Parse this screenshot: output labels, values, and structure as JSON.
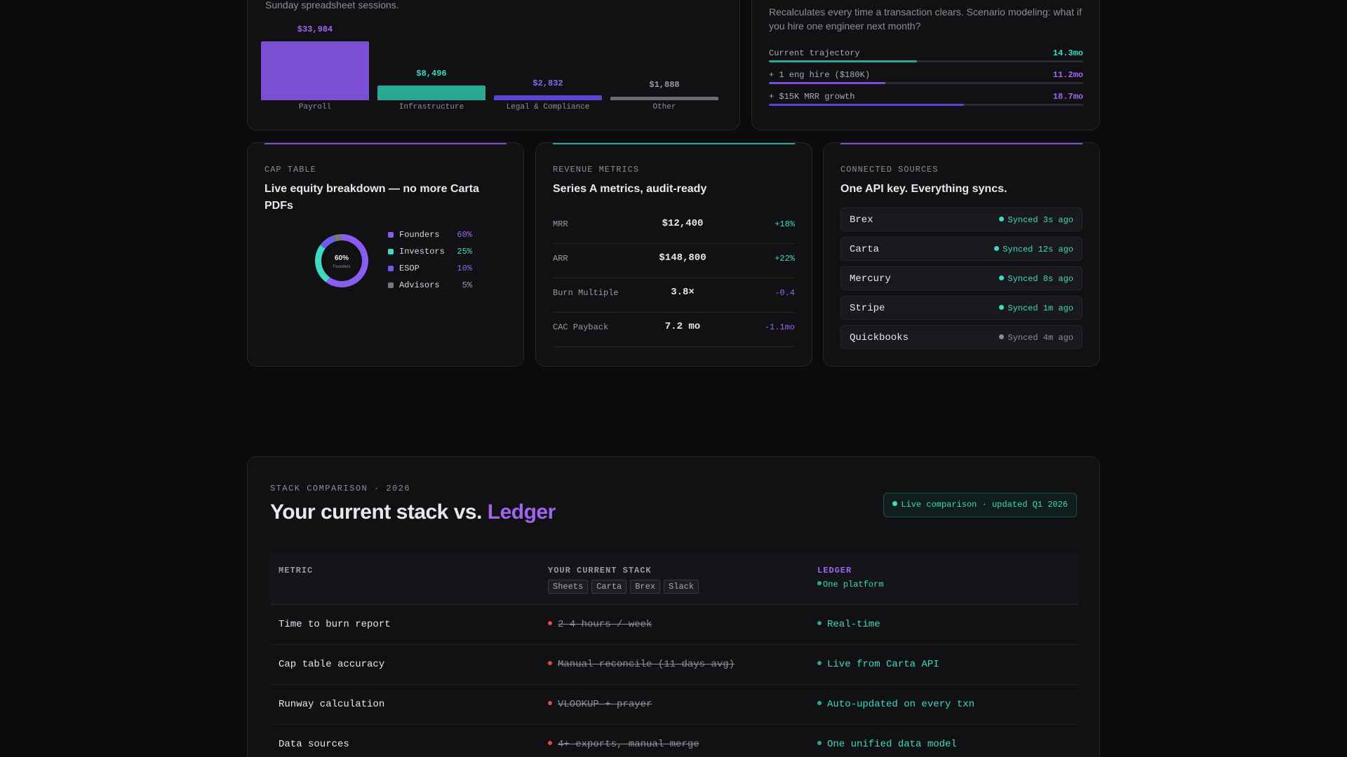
{
  "colors": {
    "purple": "#7b4fd3",
    "purple_text": "#a064f0",
    "teal": "#2aa893",
    "teal_text": "#3fd9c1",
    "indigo": "#5b45d6",
    "indigo_text": "#7a6cf5",
    "gray": "#6b6b72",
    "red": "#e04b4b"
  },
  "expense": {
    "subtitle": "Sunday spreadsheet sessions.",
    "chart_data": {
      "type": "bar",
      "categories": [
        "Payroll",
        "Infrastructure",
        "Legal & Compliance",
        "Other"
      ],
      "values": [
        33984,
        8496,
        2832,
        1888
      ],
      "value_labels": [
        "$33,984",
        "$8,496",
        "$2,832",
        "$1,888"
      ],
      "bar_colors": [
        "#7b4fd3",
        "#2aa893",
        "#5b45d6",
        "#6b6b72"
      ],
      "label_colors": [
        "#a064f0",
        "#3fd9c1",
        "#7a6cf5",
        "#9a9aa3"
      ]
    }
  },
  "runway": {
    "subtitle": "Recalculates every time a transaction clears. Scenario modeling: what if you hire one engineer next month?",
    "scenarios": [
      {
        "label": "Current trajectory",
        "value": "14.3mo",
        "fill": 0.47,
        "color": "#2aa893",
        "text_color": "#3fd9c1"
      },
      {
        "label": "+ 1 eng hire ($180K)",
        "value": "11.2mo",
        "fill": 0.37,
        "color": "#7b4fd3",
        "text_color": "#a064f0"
      },
      {
        "label": "+ $15K MRR growth",
        "value": "18.7mo",
        "fill": 0.62,
        "color": "#5b45d6",
        "text_color": "#a064f0"
      }
    ]
  },
  "cap_table": {
    "eyebrow": "CAP TABLE",
    "title": "Live equity breakdown — no more Carta PDFs",
    "center_value": "60%",
    "center_label": "Founders",
    "chart_data": {
      "type": "pie",
      "categories": [
        "Founders",
        "Investors",
        "ESOP",
        "Advisors"
      ],
      "values": [
        60,
        25,
        10,
        5
      ],
      "labels": [
        "60%",
        "25%",
        "10%",
        "5%"
      ],
      "colors": [
        "#8a5cf0",
        "#3fd9c1",
        "#6e5cf0",
        "#77777f"
      ],
      "label_colors": [
        "#a064f0",
        "#3fd9c1",
        "#7a6cf5",
        "#9a9aa3"
      ]
    }
  },
  "revenue": {
    "eyebrow": "REVENUE METRICS",
    "title": "Series A metrics, audit-ready",
    "rows": [
      {
        "name": "MRR",
        "value": "$12,400",
        "delta": "+18%",
        "color": "#3fd9c1"
      },
      {
        "name": "ARR",
        "value": "$148,800",
        "delta": "+22%",
        "color": "#3fd9c1"
      },
      {
        "name": "Burn Multiple",
        "value": "3.8×",
        "delta": "-0.4",
        "color": "#a064f0"
      },
      {
        "name": "CAC Payback",
        "value": "7.2 mo",
        "delta": "-1.1mo",
        "color": "#a064f0"
      }
    ]
  },
  "sources": {
    "eyebrow": "CONNECTED SOURCES",
    "title": "One API key. Everything syncs.",
    "items": [
      {
        "name": "Brex",
        "status": "Synced 3s ago",
        "color": "#3fd9c1"
      },
      {
        "name": "Carta",
        "status": "Synced 12s ago",
        "color": "#3fd9c1"
      },
      {
        "name": "Mercury",
        "status": "Synced 8s ago",
        "color": "#3fd9c1"
      },
      {
        "name": "Stripe",
        "status": "Synced 1m ago",
        "color": "#3fd9c1"
      },
      {
        "name": "Quickbooks",
        "status": "Synced 4m ago",
        "color": "#8d8d96"
      }
    ]
  },
  "compare": {
    "eyebrow": "STACK COMPARISON · 2026",
    "title_prefix": "Your current stack vs.",
    "title_brand": "Ledger",
    "badge": "Live comparison · updated Q1 2026",
    "headers": {
      "metric": "METRIC",
      "current": "YOUR CURRENT STACK",
      "ledger": "LEDGER",
      "ledger_sub": "One platform",
      "chips": [
        "Sheets",
        "Carta",
        "Brex",
        "Slack"
      ]
    },
    "rows": [
      {
        "metric": "Time to burn report",
        "current": "2–4 hours / week",
        "ledger": "Real-time"
      },
      {
        "metric": "Cap table accuracy",
        "current": "Manual reconcile (11 days avg)",
        "ledger": "Live from Carta API"
      },
      {
        "metric": "Runway calculation",
        "current": "VLOOKUP + prayer",
        "ledger": "Auto-updated on every txn"
      },
      {
        "metric": "Data sources",
        "current": "4+ exports, manual merge",
        "ledger": "One unified data model"
      }
    ]
  }
}
